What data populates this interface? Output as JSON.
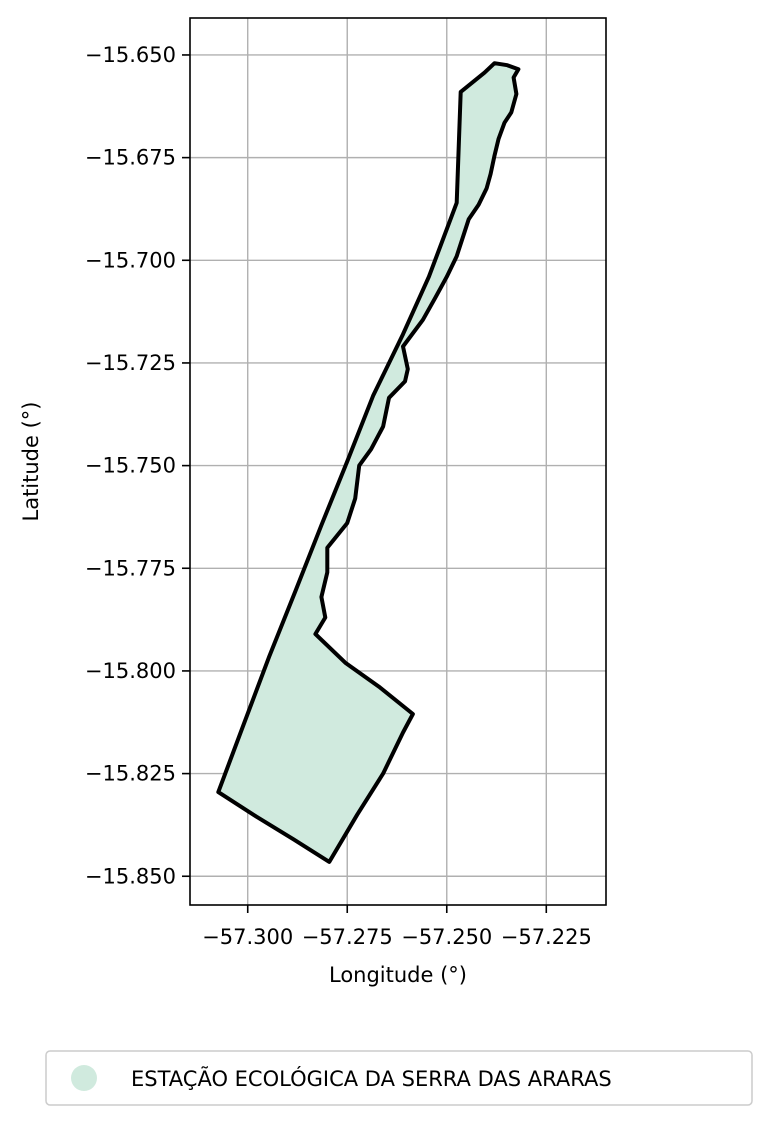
{
  "chart_data": {
    "type": "map",
    "xlabel": "Longitude (°)",
    "ylabel": "Latitude (°)",
    "xlim": [
      -57.3145,
      -57.21
    ],
    "ylim": [
      -15.857,
      -15.641
    ],
    "xticks": [
      -57.3,
      -57.275,
      -57.25,
      -57.225
    ],
    "xtick_labels": [
      "−57.300",
      "−57.275",
      "−57.250",
      "−57.225"
    ],
    "yticks": [
      -15.65,
      -15.675,
      -15.7,
      -15.725,
      -15.75,
      -15.775,
      -15.8,
      -15.825,
      -15.85
    ],
    "ytick_labels": [
      "−15.650",
      "−15.675",
      "−15.700",
      "−15.725",
      "−15.750",
      "−15.775",
      "−15.800",
      "−15.825",
      "−15.850"
    ],
    "grid": true,
    "legend": {
      "placement": "bottom-center",
      "entries": [
        {
          "label": "ESTAÇÃO ECOLÓGICA DA SERRA DAS ARARAS",
          "color": "#d0eade",
          "marker": "circle"
        }
      ]
    },
    "feature": {
      "name": "ESTAÇÃO ECOLÓGICA DA SERRA DAS ARARAS",
      "fill": "#d0eade",
      "stroke": "#000000",
      "polygon": [
        [
          -57.2465,
          -15.659
        ],
        [
          -57.2405,
          -15.6543
        ],
        [
          -57.238,
          -15.652
        ],
        [
          -57.2348,
          -15.6525
        ],
        [
          -57.232,
          -15.6535
        ],
        [
          -57.2332,
          -15.6555
        ],
        [
          -57.2325,
          -15.6595
        ],
        [
          -57.2338,
          -15.664
        ],
        [
          -57.2355,
          -15.6665
        ],
        [
          -57.237,
          -15.6705
        ],
        [
          -57.238,
          -15.6745
        ],
        [
          -57.239,
          -15.679
        ],
        [
          -57.24,
          -15.6825
        ],
        [
          -57.242,
          -15.6865
        ],
        [
          -57.2445,
          -15.69
        ],
        [
          -57.246,
          -15.6945
        ],
        [
          -57.2475,
          -15.699
        ],
        [
          -57.25,
          -15.704
        ],
        [
          -57.2528,
          -15.709
        ],
        [
          -57.256,
          -15.7145
        ],
        [
          -57.261,
          -15.721
        ],
        [
          -57.2598,
          -15.7265
        ],
        [
          -57.2605,
          -15.7295
        ],
        [
          -57.2645,
          -15.7335
        ],
        [
          -57.266,
          -15.7405
        ],
        [
          -57.269,
          -15.746
        ],
        [
          -57.272,
          -15.75
        ],
        [
          -57.273,
          -15.758
        ],
        [
          -57.275,
          -15.764
        ],
        [
          -57.28,
          -15.77
        ],
        [
          -57.28,
          -15.776
        ],
        [
          -57.2815,
          -15.782
        ],
        [
          -57.2805,
          -15.787
        ],
        [
          -57.283,
          -15.791
        ],
        [
          -57.2755,
          -15.798
        ],
        [
          -57.2668,
          -15.804
        ],
        [
          -57.2585,
          -15.8105
        ],
        [
          -57.261,
          -15.815
        ],
        [
          -57.266,
          -15.825
        ],
        [
          -57.2725,
          -15.835
        ],
        [
          -57.2795,
          -15.8465
        ],
        [
          -57.2885,
          -15.841
        ],
        [
          -57.2978,
          -15.8355
        ],
        [
          -57.3074,
          -15.8295
        ],
        [
          -57.301,
          -15.813
        ],
        [
          -57.2946,
          -15.7965
        ],
        [
          -57.288,
          -15.7805
        ],
        [
          -57.2815,
          -15.7645
        ],
        [
          -57.275,
          -15.749
        ],
        [
          -57.2685,
          -15.733
        ],
        [
          -57.261,
          -15.718
        ],
        [
          -57.2545,
          -15.704
        ],
        [
          -57.2475,
          -15.686
        ],
        [
          -57.2465,
          -15.659
        ]
      ]
    }
  }
}
